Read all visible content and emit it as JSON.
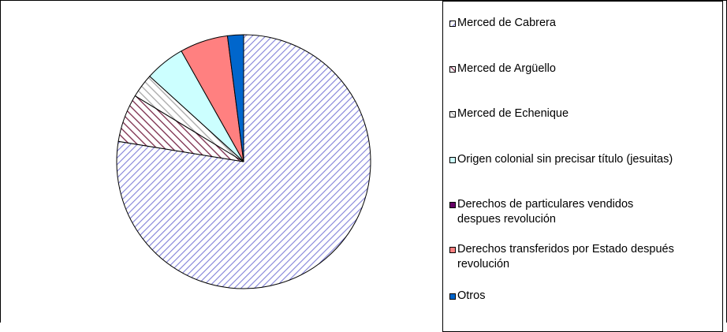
{
  "chart_data": {
    "type": "pie",
    "title": "",
    "legend_position": "right",
    "slices": [
      {
        "name": "Merced de Cabrera",
        "value": 76,
        "color": "#9999ff",
        "pattern": "diag-right"
      },
      {
        "name": "Merced de Argüello",
        "value": 6,
        "color": "#993366",
        "pattern": "diag-left"
      },
      {
        "name": "Merced de Echenique",
        "value": 3,
        "color": "#c0c0c0",
        "pattern": "diag-left-light"
      },
      {
        "name": "Origen colonial sin precisar título (jesuitas)",
        "value": 5,
        "color": "#ccffff",
        "pattern": "solid"
      },
      {
        "name": "Derechos de particulares vendidos\ndespues revolución",
        "value": 0,
        "color": "#660066",
        "pattern": "solid"
      },
      {
        "name": "Derechos transferidos por Estado después\nrevolución",
        "value": 6,
        "color": "#ff8080",
        "pattern": "solid"
      },
      {
        "name": "Otros",
        "value": 2,
        "color": "#0066cc",
        "pattern": "solid"
      }
    ]
  }
}
